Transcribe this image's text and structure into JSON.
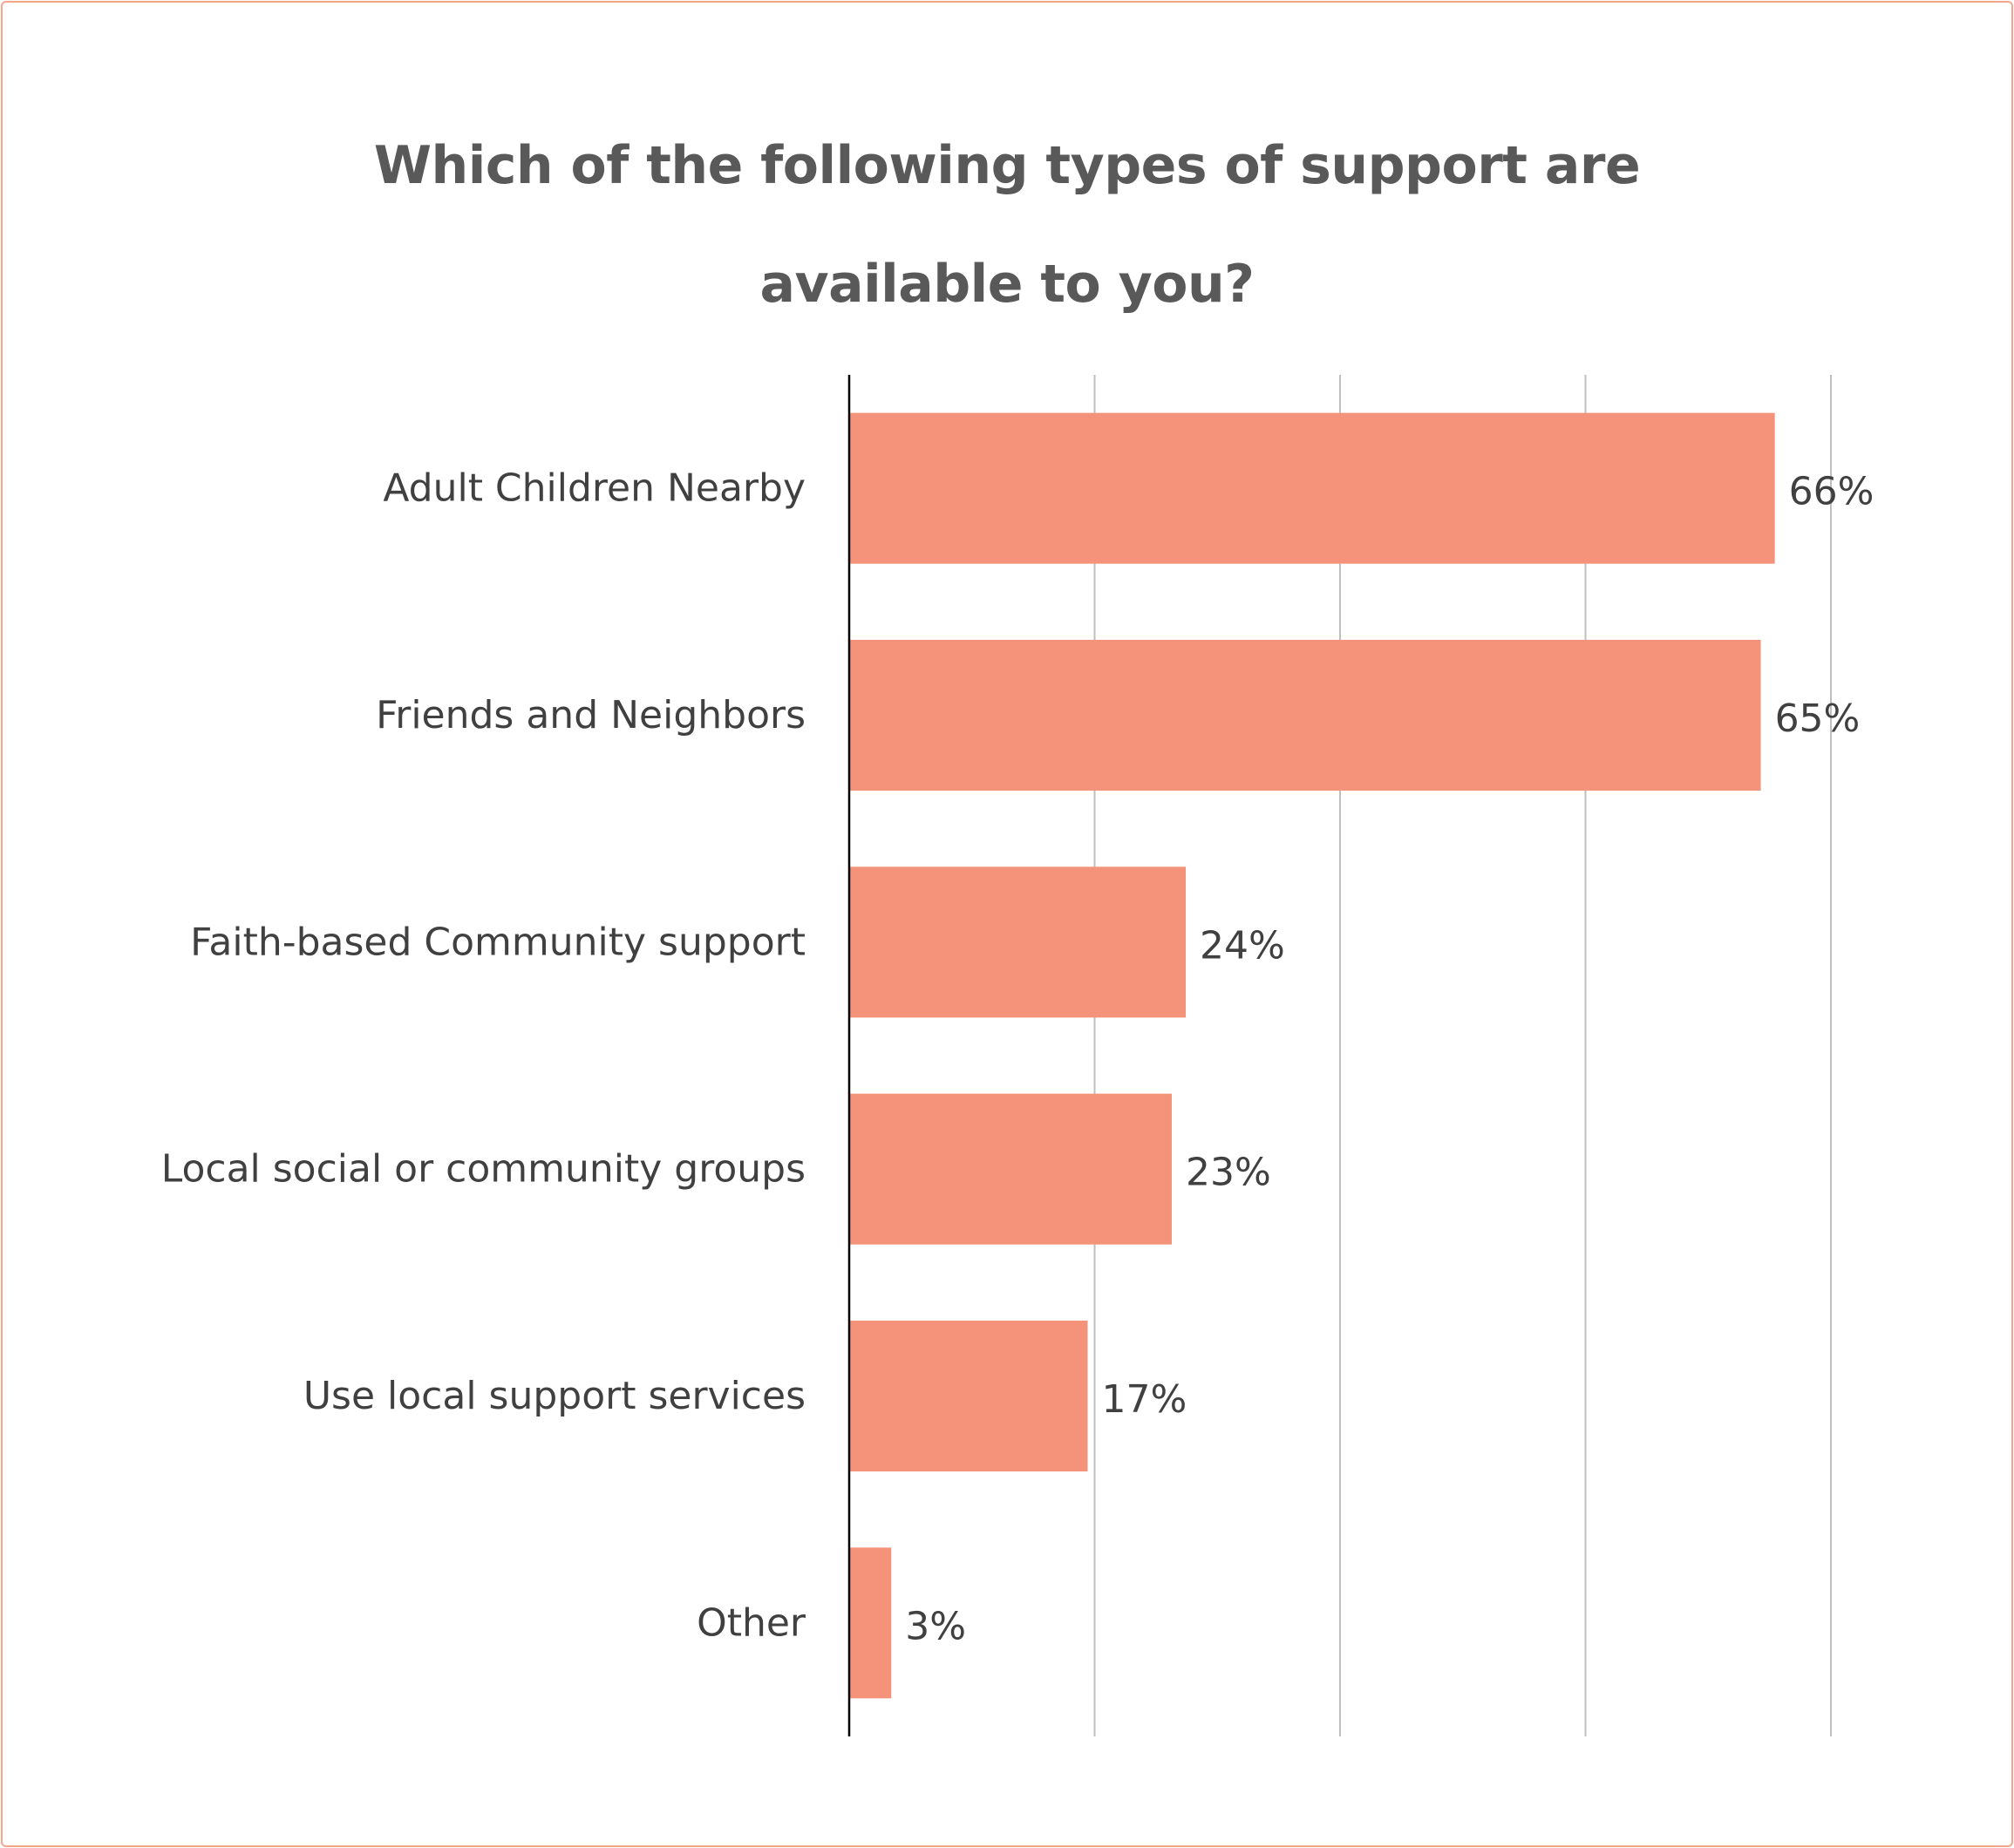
{
  "chart_data": {
    "type": "bar",
    "orientation": "horizontal",
    "title": "Which of the following types of support are available to you?",
    "title_lines": [
      "Which of the following types of support are",
      "available to you?"
    ],
    "categories": [
      "Adult Children Nearby",
      "Friends and Neighbors",
      "Faith-based Community support",
      "Local social or community groups",
      "Use local support services",
      "Other"
    ],
    "values": [
      66,
      65,
      24,
      23,
      17,
      3
    ],
    "value_labels": [
      "66%",
      "65%",
      "24%",
      "23%",
      "17%",
      "3%"
    ],
    "xlim": [
      0,
      70
    ],
    "gridline_step": 17.5,
    "grid": true,
    "legend": "none",
    "bar_color": "#f4937a",
    "grid_color": "#bfbfbf",
    "axis_color": "#000000",
    "border_color": "#f4a58a"
  }
}
